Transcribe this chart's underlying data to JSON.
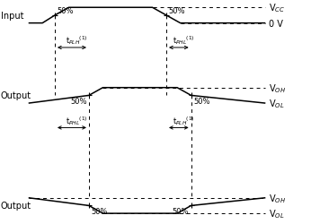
{
  "fig_width": 3.46,
  "fig_height": 2.51,
  "dpi": 100,
  "bg_color": "#ffffff",
  "line_color": "#000000",
  "lw": 1.1,
  "lw_dash": 0.7,
  "input_label": "Input",
  "output1_label": "Output",
  "output2_label": "Output",
  "vcc_label": "V$_{CC}$",
  "voh1_label": "V$_{OH}$",
  "vol1_label": "V$_{OL}$",
  "voh2_label": "V$_{OH}$",
  "vol2_label": "V$_{OL}$",
  "v0v_label": "0 V",
  "tplh1_label": "t$_{PLH}$$^{(1)}$",
  "tphl1_label": "t$_{PHL}$$^{(1)}$",
  "tphl2_label": "t$_{PHL}$$^{(1)}$",
  "tplh2_label": "t$_{PLH}$$^{(1)}$",
  "pct_label": "50%",
  "font_label": 7,
  "font_pct": 6,
  "font_timing": 6,
  "xlim": [
    0,
    10
  ],
  "ylim": [
    0,
    10
  ],
  "x_wave_start": 0.9,
  "x_wave_end": 8.55,
  "x_in_rise_start": 1.35,
  "x_in_50pct_rise": 1.75,
  "x_in_flat_start": 2.2,
  "x_in_flat_end": 4.9,
  "x_in_50pct_fall": 5.35,
  "x_in_fall_end": 5.8,
  "x_o1_50pct_rise": 2.85,
  "x_o1_flat_start": 3.3,
  "x_o1_flat_end": 5.7,
  "x_o1_50pct_fall": 6.15,
  "x_o2_50pct_fall": 2.85,
  "x_o2_flat_start": 3.3,
  "x_o2_flat_end": 5.7,
  "x_o2_50pct_rise": 6.15,
  "in_y_lo": 9.0,
  "in_y_hi": 9.7,
  "out1_y_lo": 5.4,
  "out1_y_hi": 6.1,
  "out2_y_lo": 0.45,
  "out2_y_hi": 1.15,
  "arr1_y": 7.9,
  "arr2_y": 4.3
}
